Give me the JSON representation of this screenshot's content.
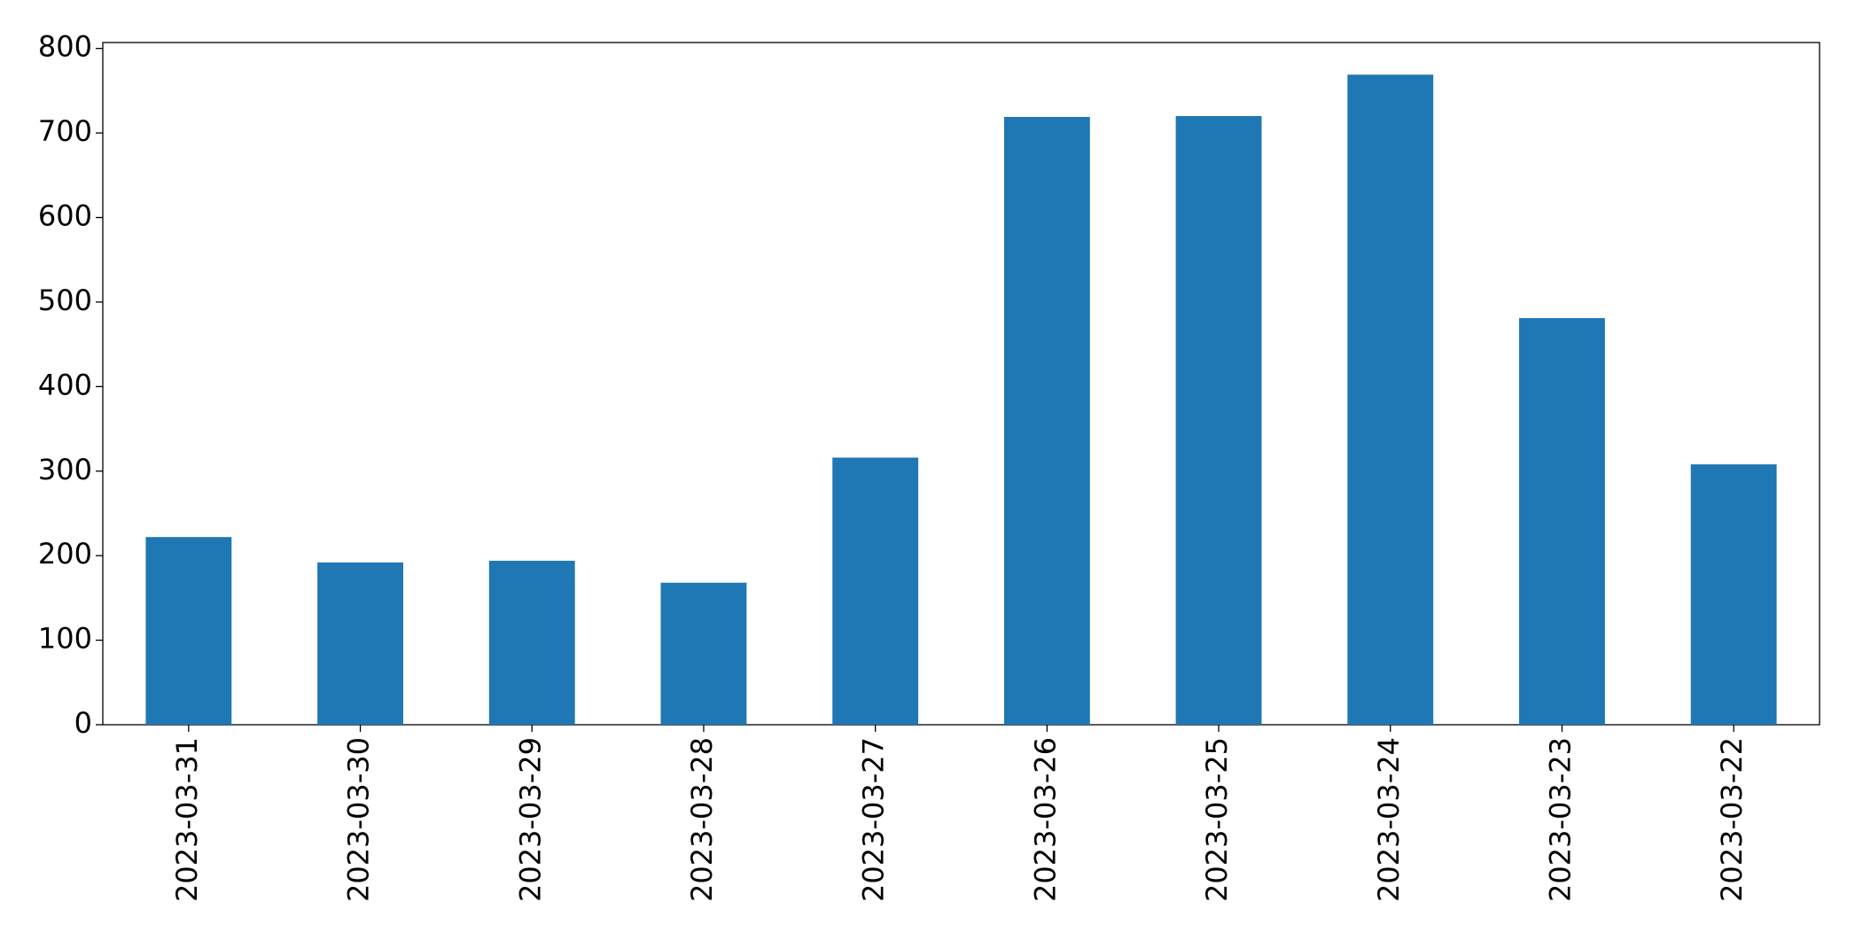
{
  "chart_data": {
    "type": "bar",
    "categories": [
      "2023-03-31",
      "2023-03-30",
      "2023-03-29",
      "2023-03-28",
      "2023-03-27",
      "2023-03-26",
      "2023-03-25",
      "2023-03-24",
      "2023-03-23",
      "2023-03-22"
    ],
    "values": [
      222,
      192,
      194,
      168,
      316,
      719,
      720,
      769,
      481,
      308
    ],
    "color": "#1f77b4",
    "ylim": [
      0,
      807
    ],
    "yticks": [
      0,
      100,
      200,
      300,
      400,
      500,
      600,
      700,
      800
    ],
    "grid": false
  }
}
